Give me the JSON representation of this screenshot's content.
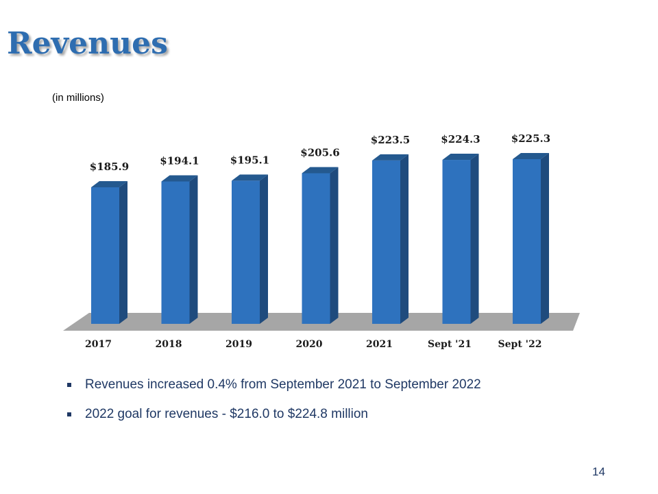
{
  "slide": {
    "title": "Revenues",
    "unit_note": "(in millions)",
    "page_number": "14",
    "bullets": [
      "Revenues increased 0.4% from September 2021 to September 2022",
      "2022 goal for revenues - $216.0 to $224.8 million"
    ]
  },
  "colors": {
    "title": "#2e6db0",
    "bar_front": "#2e72be",
    "bar_side": "#1f4b7d",
    "bar_top": "#24598f",
    "floor": "#a6a6a6",
    "text_dark": "#1f3864"
  },
  "chart_data": {
    "type": "bar",
    "style": "3d-column",
    "categories": [
      "2017",
      "2018",
      "2019",
      "2020",
      "2021",
      "Sept '21",
      "Sept '22"
    ],
    "values": [
      185.9,
      194.1,
      195.1,
      205.6,
      223.5,
      224.3,
      225.3
    ],
    "value_labels": [
      "$185.9",
      "$194.1",
      "$195.1",
      "$205.6",
      "$223.5",
      "$224.3",
      "$225.3"
    ],
    "title": "",
    "xlabel": "",
    "ylabel": "",
    "grid": false,
    "legend": "none"
  }
}
